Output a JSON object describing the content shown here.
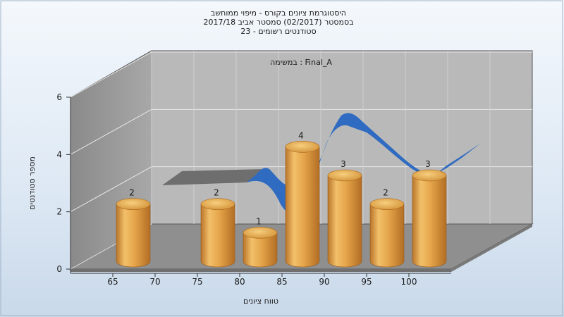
{
  "title_lines": [
    "היסטוגרמת ציונים בקורס - מיפוי ממוחשב",
    "בסמסטר  (02/2017)  סמסטר אביב 2017/18",
    "סטודנטים רשומים - 23"
  ],
  "chart_data": {
    "type": "bar",
    "xlabel": "טווח ציונים",
    "ylabel": "מספר סטודנטים",
    "annotation": "במשימה : Final_A",
    "x_ticks": [
      "65",
      "70",
      "75",
      "80",
      "85",
      "90",
      "95",
      "100"
    ],
    "y_ticks": [
      "0",
      "2",
      "4",
      "6"
    ],
    "ylim": [
      0,
      6
    ],
    "bars": [
      {
        "x": 65,
        "value": 2,
        "label": "2"
      },
      {
        "x": 75,
        "value": 2,
        "label": "2"
      },
      {
        "x": 80,
        "value": 1,
        "label": "1"
      },
      {
        "x": 85,
        "value": 4,
        "label": "4"
      },
      {
        "x": 90,
        "value": 3,
        "label": "3"
      },
      {
        "x": 95,
        "value": 2,
        "label": "2"
      },
      {
        "x": 100,
        "value": 3,
        "label": "3"
      }
    ],
    "grid": true,
    "colors": {
      "bar": "#E3A247",
      "ribbon_blue": "#2F6BC0",
      "ribbon_gray": "#6E6E6E",
      "wall": "#A5A5A5",
      "back_wall": "#B9B9B9",
      "floor": "#8E8E8E"
    }
  }
}
